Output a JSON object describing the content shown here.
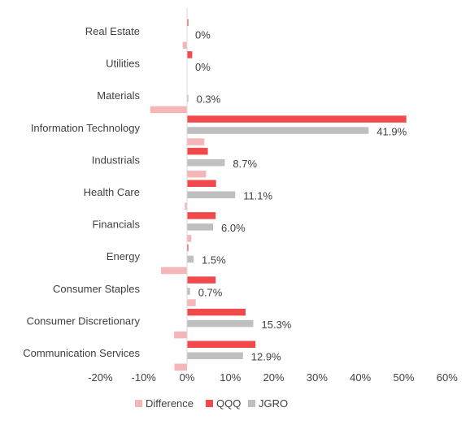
{
  "chart_data": {
    "type": "bar",
    "orientation": "horizontal",
    "categories": [
      "Real Estate",
      "Utilities",
      "Materials",
      "Information Technology",
      "Industrials",
      "Health Care",
      "Financials",
      "Energy",
      "Consumer Staples",
      "Consumer Discretionary",
      "Communication Services"
    ],
    "series": [
      {
        "name": "Difference",
        "color": "#f4b6b7",
        "values": [
          -1.0,
          0.0,
          -8.5,
          4.0,
          4.4,
          -0.5,
          1.0,
          -6.0,
          2.0,
          -3.0,
          -2.9
        ]
      },
      {
        "name": "QQQ",
        "color": "#f04a4c",
        "values": [
          0.3,
          1.2,
          0.1,
          50.6,
          4.8,
          6.7,
          6.6,
          0.3,
          6.6,
          13.5,
          15.8
        ]
      },
      {
        "name": "JGRO",
        "color": "#bfbfbf",
        "values": [
          0.0,
          0.0,
          0.3,
          41.9,
          8.7,
          11.1,
          6.0,
          1.5,
          0.7,
          15.3,
          12.9
        ]
      }
    ],
    "data_labels": [
      "0%",
      "0%",
      "0.3%",
      "41.9%",
      "8.7%",
      "11.1%",
      "6.0%",
      "1.5%",
      "0.7%",
      "15.3%",
      "12.9%"
    ],
    "xlim": [
      -20,
      60
    ],
    "xticks": [
      -20,
      -10,
      0,
      10,
      20,
      30,
      40,
      50,
      60
    ],
    "tick_labels": [
      "-20%",
      "-10%",
      "0%",
      "10%",
      "20%",
      "30%",
      "40%",
      "50%",
      "60%"
    ],
    "grid": false,
    "legend_position": "bottom"
  }
}
